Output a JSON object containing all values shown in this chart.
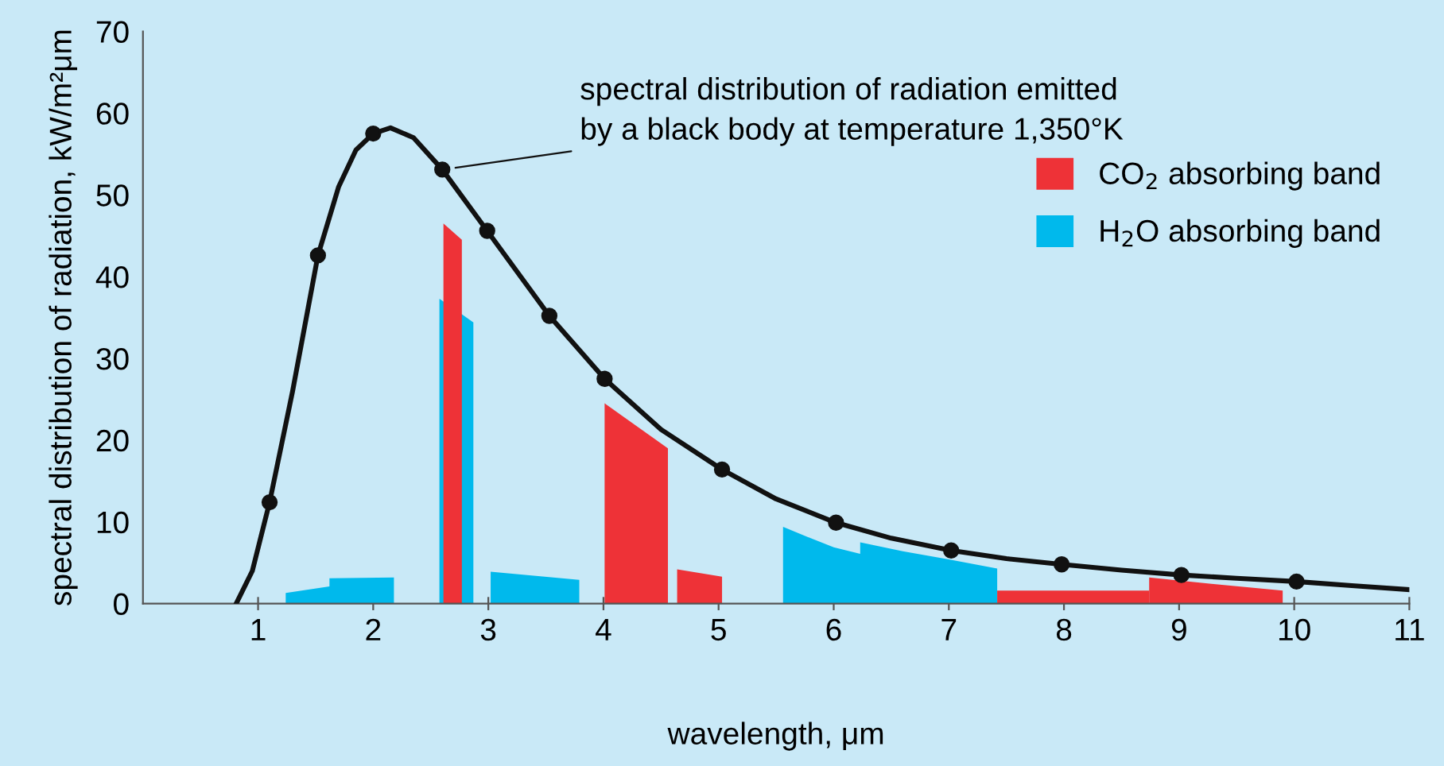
{
  "chart_data": {
    "type": "line",
    "xlabel": "wavelength, μm",
    "ylabel": "spectral distribution of radiation, kW/m²μm",
    "xlim": [
      0,
      11
    ],
    "xticks": [
      1,
      2,
      3,
      4,
      5,
      6,
      7,
      8,
      9,
      10,
      11
    ],
    "ylim": [
      0,
      70
    ],
    "yticks": [
      0,
      10,
      20,
      30,
      40,
      50,
      60,
      70
    ],
    "grid": false,
    "legend": "right",
    "annotations": [
      {
        "text": "spectral distribution of radiation emitted\nby a black body at temperature 1,350°K",
        "x": 2.6,
        "y": 53.1
      }
    ],
    "series": [
      {
        "type": "area",
        "color": "#00b9ec",
        "x": [
          1.24,
          1.62,
          1.62,
          2.18
        ],
        "values": [
          1.3,
          2.1,
          3.1,
          3.2
        ]
      },
      {
        "type": "area",
        "name": "H$_{2}$O absorbing band",
        "color": "#00b9ec",
        "x": [
          2.575,
          2.77,
          2.87
        ],
        "values": [
          37.3,
          35.4,
          34.4
        ]
      },
      {
        "type": "area",
        "color": "#00b9ec",
        "x": [
          3.02,
          3.79
        ],
        "values": [
          3.9,
          2.9
        ]
      },
      {
        "type": "area",
        "color": "#00b9ec",
        "x": [
          5.56,
          5.8,
          6.0,
          6.23,
          6.23,
          6.6,
          7.0,
          7.42
        ],
        "values": [
          9.4,
          8.0,
          6.9,
          6.1,
          7.5,
          6.4,
          5.4,
          4.3
        ]
      },
      {
        "type": "area",
        "name": "CO$_{2}$ absorbing band",
        "color": "#ee3237",
        "x": [
          2.61,
          2.77
        ],
        "values": [
          46.5,
          44.5
        ]
      },
      {
        "type": "area",
        "color": "#ee3237",
        "x": [
          4.01,
          4.56
        ],
        "values": [
          24.5,
          19.0
        ]
      },
      {
        "type": "area",
        "color": "#ee3237",
        "x": [
          4.64,
          5.03
        ],
        "values": [
          4.2,
          3.3
        ]
      },
      {
        "type": "area",
        "color": "#ee3237",
        "x": [
          7.42,
          8.74
        ],
        "values": [
          1.6,
          1.6
        ]
      },
      {
        "type": "area",
        "color": "#ee3237",
        "x": [
          8.74,
          9.3,
          9.9
        ],
        "values": [
          3.2,
          2.4,
          1.6
        ]
      },
      {
        "color": "#111111",
        "marker": "none",
        "x": [
          0.81,
          0.95,
          1.1,
          1.3,
          1.52,
          1.7,
          1.85,
          2.0,
          2.15,
          2.35,
          2.6,
          2.99,
          3.53,
          4.01,
          4.5,
          5.03,
          5.5,
          6.02,
          6.5,
          7.02,
          7.5,
          7.98,
          8.5,
          9.02,
          9.5,
          10.02,
          10.5,
          11
        ],
        "values": [
          0,
          4,
          12.4,
          26,
          42.6,
          51,
          55.5,
          57.5,
          58.2,
          57,
          53.1,
          45.6,
          35.2,
          27.5,
          21.3,
          16.4,
          12.8,
          9.9,
          8.0,
          6.5,
          5.5,
          4.8,
          4.1,
          3.5,
          3.1,
          2.7,
          2.2,
          1.7
        ]
      },
      {
        "type": "scatter",
        "color": "#111111",
        "marker": "circle",
        "x": [
          1.1,
          1.52,
          2.0,
          2.6,
          2.99,
          3.53,
          4.01,
          5.03,
          6.02,
          7.02,
          7.98,
          9.02,
          10.02
        ],
        "values": [
          12.4,
          42.6,
          57.5,
          53.1,
          45.6,
          35.2,
          27.5,
          16.4,
          9.9,
          6.5,
          4.8,
          3.5,
          2.7
        ]
      }
    ]
  }
}
